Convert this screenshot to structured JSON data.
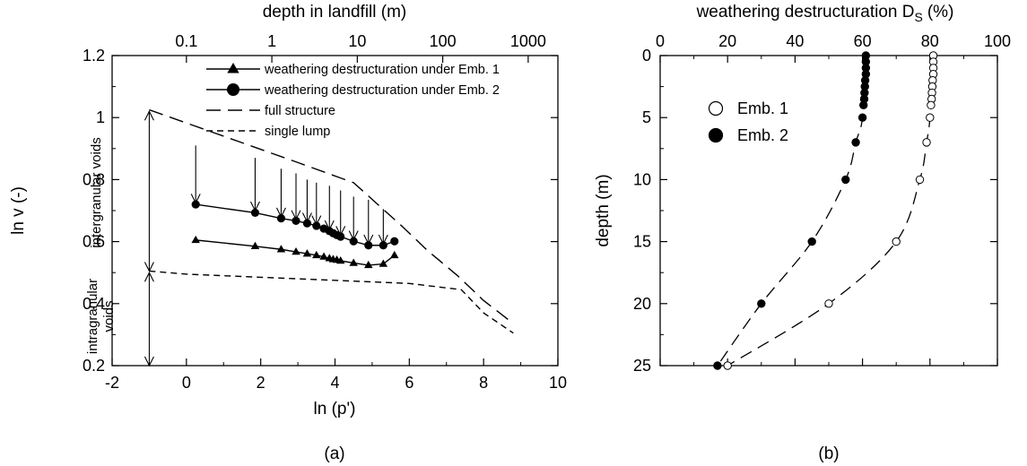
{
  "panel_labels": {
    "a": "(a)",
    "b": "(b)"
  },
  "chart_data": [
    {
      "type": "line",
      "panel": "(a)",
      "xlabel": "ln (p')",
      "ylabel": "ln v (-)",
      "top_axis_label": "depth in landfill (m)",
      "xlim": [
        -2,
        10
      ],
      "ylim": [
        0.2,
        1.2
      ],
      "x_ticks": [
        -2,
        0,
        2,
        4,
        6,
        8,
        10
      ],
      "y_ticks": [
        0.2,
        0.4,
        0.6,
        0.8,
        1.0,
        1.2
      ],
      "x_tick_labels": [
        "-2",
        "0",
        "2",
        "4",
        "6",
        "8",
        "10"
      ],
      "y_tick_labels": [
        "0.2",
        "0.4",
        "0.6",
        "0.8",
        "1",
        "1.2"
      ],
      "top_ticks": [
        {
          "label": "0.1",
          "x": 0.0
        },
        {
          "label": "1",
          "x": 2.3
        },
        {
          "label": "10",
          "x": 4.6
        },
        {
          "label": "100",
          "x": 6.9
        },
        {
          "label": "1000",
          "x": 9.2
        }
      ],
      "grid": false,
      "legend_position": "top-right",
      "legend": [
        "weathering destructuration under Emb. 1",
        "weathering destructuration under Emb. 2",
        "full structure",
        "single lump"
      ],
      "series": [
        {
          "name": "weathering destructuration under Emb. 1",
          "marker": "triangle",
          "style": "solid",
          "x": [
            0.25,
            1.85,
            2.55,
            2.95,
            3.25,
            3.5,
            3.7,
            3.85,
            3.95,
            4.05,
            4.15,
            4.5,
            4.9,
            5.3,
            5.6
          ],
          "y": [
            0.605,
            0.585,
            0.575,
            0.567,
            0.561,
            0.556,
            0.551,
            0.546,
            0.543,
            0.541,
            0.538,
            0.531,
            0.524,
            0.528,
            0.556
          ]
        },
        {
          "name": "weathering destructuration under Emb. 2",
          "marker": "circle",
          "style": "solid",
          "x": [
            0.25,
            1.85,
            2.55,
            2.95,
            3.25,
            3.5,
            3.7,
            3.85,
            3.95,
            4.05,
            4.15,
            4.5,
            4.9,
            5.3,
            5.6
          ],
          "y": [
            0.72,
            0.693,
            0.675,
            0.667,
            0.659,
            0.651,
            0.642,
            0.634,
            0.627,
            0.621,
            0.616,
            0.601,
            0.588,
            0.588,
            0.601
          ]
        },
        {
          "name": "full structure",
          "style": "long-dash",
          "x": [
            -1.0,
            1.0,
            3.0,
            4.5,
            5.8,
            6.5,
            7.3,
            8.0,
            8.7
          ],
          "y": [
            1.025,
            0.94,
            0.855,
            0.79,
            0.65,
            0.57,
            0.49,
            0.41,
            0.345
          ]
        },
        {
          "name": "single lump",
          "style": "short-dash",
          "x": [
            -1.0,
            0.0,
            2.0,
            4.0,
            6.0,
            7.4,
            8.0,
            8.8
          ],
          "y": [
            0.505,
            0.495,
            0.485,
            0.475,
            0.465,
            0.445,
            0.37,
            0.305
          ]
        }
      ],
      "arrows": {
        "description": "vertical arrows from full structure down to Emb. 2 points",
        "x": [
          0.25,
          1.85,
          2.55,
          2.95,
          3.25,
          3.5,
          3.85,
          4.15,
          4.5,
          4.9,
          5.3
        ],
        "y_from": [
          0.91,
          0.87,
          0.835,
          0.82,
          0.8,
          0.79,
          0.78,
          0.765,
          0.745,
          0.735,
          0.705
        ],
        "y_to": [
          0.725,
          0.7,
          0.68,
          0.672,
          0.664,
          0.655,
          0.639,
          0.621,
          0.606,
          0.593,
          0.593
        ]
      },
      "annotations": {
        "intergranular": "intergranular voids",
        "intragranular_1": "intragranular",
        "intragranular_2": "voids"
      }
    },
    {
      "type": "scatter",
      "panel": "(b)",
      "xlabel_main": "weathering destructuration D",
      "xlabel_sub": "S",
      "xlabel_unit": "(%)",
      "ylabel": "depth (m)",
      "xlim": [
        0,
        100
      ],
      "ylim": [
        0,
        25
      ],
      "y_inverted": true,
      "x_ticks": [
        0,
        20,
        40,
        60,
        80,
        100
      ],
      "y_ticks": [
        0,
        5,
        10,
        15,
        20,
        25
      ],
      "x_tick_labels": [
        "0",
        "20",
        "40",
        "60",
        "80",
        "100"
      ],
      "y_tick_labels": [
        "0",
        "5",
        "10",
        "15",
        "20",
        "25"
      ],
      "grid": false,
      "legend_position": "top-left",
      "series": [
        {
          "name": "Emb. 1",
          "marker": "open-circle",
          "depth": [
            0,
            0.5,
            1,
            1.5,
            2,
            2.5,
            3,
            3.5,
            4,
            5,
            7,
            10,
            15,
            20,
            25
          ],
          "ds": [
            81,
            81,
            81,
            81,
            80.8,
            80.7,
            80.6,
            80.5,
            80.3,
            80,
            79,
            77,
            70,
            50,
            20
          ]
        },
        {
          "name": "Emb. 2",
          "marker": "filled-circle",
          "depth": [
            0,
            0.5,
            1,
            1.5,
            2,
            2.5,
            3,
            3.5,
            4,
            5,
            7,
            10,
            15,
            20,
            25
          ],
          "ds": [
            61,
            61,
            61,
            61,
            60.8,
            60.7,
            60.6,
            60.5,
            60.3,
            60,
            58,
            55,
            45,
            30,
            17
          ]
        }
      ],
      "fit_curves": [
        {
          "for": "Emb. 1",
          "depth": [
            0,
            5,
            7,
            10,
            15,
            20,
            25
          ],
          "ds": [
            81,
            80,
            79,
            77,
            70,
            50,
            20
          ]
        },
        {
          "for": "Emb. 2",
          "depth": [
            0,
            5,
            7,
            10,
            15,
            20,
            25
          ],
          "ds": [
            61,
            60,
            58,
            55,
            45,
            30,
            17
          ]
        }
      ]
    }
  ]
}
